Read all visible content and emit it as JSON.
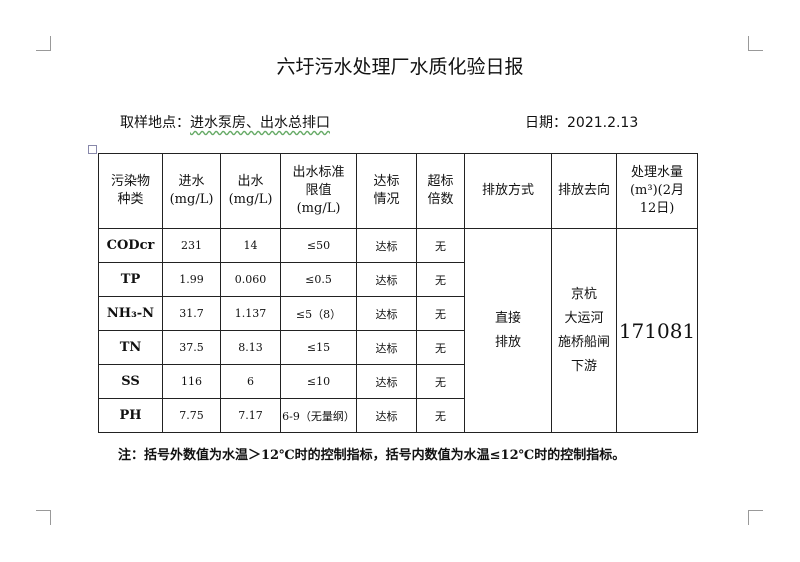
{
  "title": "六圩污水处理厂水质化验日报",
  "location_label": "取样地点：",
  "location": "进水泵房、出水总排口",
  "date_label": "日期：",
  "date": "2021.2.13",
  "headers": [
    "污染物种类",
    "进水(mg/L)",
    "出水(mg/L)",
    "出水标准限值(mg/L)",
    "达标情况",
    "超标倍数",
    "排放方式",
    "排放去向",
    "处理水量(m³)(2月12日)"
  ],
  "rows": [
    {
      "name": "CODcr",
      "in": "231",
      "out": "14",
      "limit": "≤50",
      "status": "达标",
      "exceed": "无"
    },
    {
      "name": "TP",
      "in": "1.99",
      "out": "0.060",
      "limit": "≤0.5",
      "status": "达标",
      "exceed": "无"
    },
    {
      "name": "NH₃-N",
      "in": "31.7",
      "out": "1.137",
      "limit": "≤5（8）",
      "status": "达标",
      "exceed": "无"
    },
    {
      "name": "TN",
      "in": "37.5",
      "out": "8.13",
      "limit": "≤15",
      "status": "达标",
      "exceed": "无"
    },
    {
      "name": "SS",
      "in": "116",
      "out": "6",
      "limit": "≤10",
      "status": "达标",
      "exceed": "无"
    },
    {
      "name": "PH",
      "in": "7.75",
      "out": "7.17",
      "limit": "6-9（无量纲）",
      "status": "达标",
      "exceed": "无"
    }
  ],
  "discharge_method": [
    "直接",
    "排放"
  ],
  "discharge_dest": [
    "京杭",
    "大运河",
    "施桥船闸",
    "下游"
  ],
  "volume": "171081",
  "note": "注：括号外数值为水温＞12℃时的控制指标，括号内数值为水温≤12℃时的控制指标。"
}
